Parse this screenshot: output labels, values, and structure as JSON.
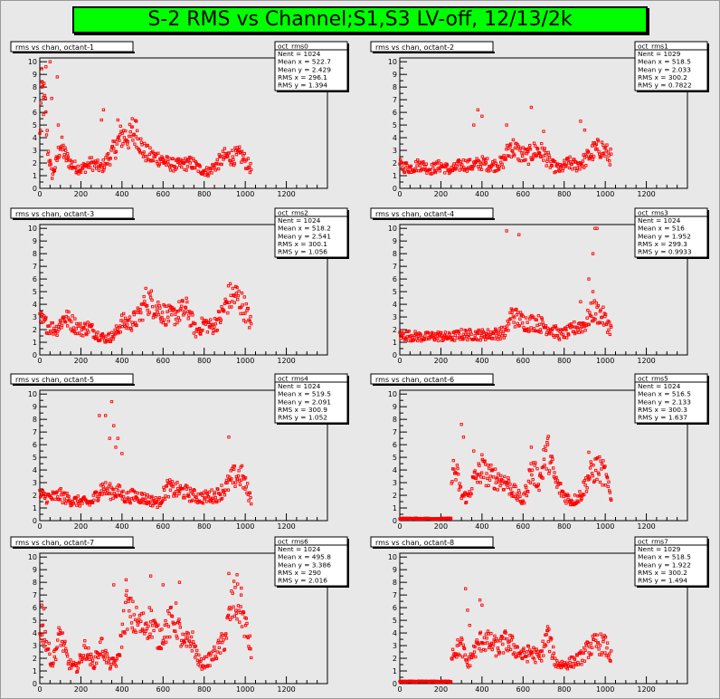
{
  "canvas_title": "S-2 RMS vs Channel;S1,S3 LV-off, 12/13/2k",
  "colors": {
    "marker": "#ff0000",
    "title_bg": "#00ff00",
    "frame_bg": "#e8e8e8"
  },
  "chart_data": [
    {
      "type": "scatter",
      "title": "rms vs chan, octant-1",
      "stats": {
        "name": "oct_rms0",
        "entries": "Nent = 1024",
        "mean_x": "Mean x = 522.7",
        "mean_y": "Mean y = 2.429",
        "rms_x": "RMS x = 296.1",
        "rms_y": "RMS y = 1.394"
      },
      "xlim": [
        0,
        1400
      ],
      "ylim": [
        0,
        10.3
      ],
      "xticks": [
        "0",
        "200",
        "400",
        "600",
        "800",
        "1000",
        "1200"
      ],
      "yticks": [
        "0",
        "1",
        "2",
        "3",
        "4",
        "5",
        "6",
        "7",
        "8",
        "9",
        "10"
      ],
      "x_range": [
        0,
        1030
      ],
      "profile": [
        [
          0,
          4.0
        ],
        [
          10,
          7.8
        ],
        [
          25,
          6.5
        ],
        [
          40,
          3.0
        ],
        [
          60,
          1.0
        ],
        [
          80,
          2.0
        ],
        [
          100,
          3.5
        ],
        [
          130,
          2.4
        ],
        [
          160,
          1.8
        ],
        [
          200,
          1.5
        ],
        [
          250,
          2.0
        ],
        [
          300,
          1.6
        ],
        [
          340,
          2.5
        ],
        [
          360,
          3.0
        ],
        [
          400,
          4.2
        ],
        [
          440,
          4.0
        ],
        [
          470,
          4.5
        ],
        [
          500,
          3.0
        ],
        [
          540,
          2.5
        ],
        [
          580,
          2.4
        ],
        [
          620,
          2.0
        ],
        [
          660,
          1.8
        ],
        [
          700,
          1.9
        ],
        [
          740,
          2.0
        ],
        [
          780,
          1.5
        ],
        [
          820,
          1.3
        ],
        [
          860,
          1.9
        ],
        [
          900,
          2.5
        ],
        [
          940,
          2.5
        ],
        [
          980,
          2.6
        ],
        [
          1030,
          1.5
        ]
      ],
      "spikes": [
        [
          8,
          8.4
        ],
        [
          12,
          8.0
        ],
        [
          18,
          7.2
        ],
        [
          30,
          9.6
        ],
        [
          50,
          10.0
        ],
        [
          58,
          7.1
        ],
        [
          85,
          8.8
        ],
        [
          90,
          5.0
        ],
        [
          310,
          6.2
        ],
        [
          300,
          5.4
        ],
        [
          380,
          5.4
        ],
        [
          450,
          5.5
        ],
        [
          470,
          5.3
        ]
      ]
    },
    {
      "type": "scatter",
      "title": "rms vs chan, octant-2",
      "stats": {
        "name": "oct_rms1",
        "entries": "Nent = 1029",
        "mean_x": "Mean x = 518.5",
        "mean_y": "Mean y = 2.033",
        "rms_x": "RMS x = 300.2",
        "rms_y": "RMS y = 0.7822"
      },
      "xlim": [
        0,
        1400
      ],
      "ylim": [
        0,
        10.3
      ],
      "xticks": [
        "0",
        "200",
        "400",
        "600",
        "800",
        "1000",
        "1200"
      ],
      "yticks": [
        "0",
        "1",
        "2",
        "3",
        "4",
        "5",
        "6",
        "7",
        "8",
        "9",
        "10"
      ],
      "x_range": [
        0,
        1030
      ],
      "profile": [
        [
          0,
          1.8
        ],
        [
          50,
          1.6
        ],
        [
          100,
          1.9
        ],
        [
          150,
          1.5
        ],
        [
          200,
          1.8
        ],
        [
          250,
          1.4
        ],
        [
          300,
          1.9
        ],
        [
          350,
          1.8
        ],
        [
          400,
          2.0
        ],
        [
          450,
          1.8
        ],
        [
          500,
          2.0
        ],
        [
          540,
          3.4
        ],
        [
          580,
          2.8
        ],
        [
          620,
          2.5
        ],
        [
          660,
          3.0
        ],
        [
          700,
          2.8
        ],
        [
          740,
          1.8
        ],
        [
          780,
          1.5
        ],
        [
          820,
          2.0
        ],
        [
          860,
          1.8
        ],
        [
          900,
          2.2
        ],
        [
          940,
          2.9
        ],
        [
          980,
          3.2
        ],
        [
          1030,
          2.4
        ]
      ],
      "spikes": [
        [
          360,
          5.0
        ],
        [
          380,
          6.2
        ],
        [
          400,
          5.7
        ],
        [
          520,
          5.0
        ],
        [
          640,
          6.4
        ],
        [
          700,
          4.5
        ],
        [
          880,
          5.3
        ],
        [
          900,
          4.6
        ]
      ]
    },
    {
      "type": "scatter",
      "title": "rms vs chan, octant-3",
      "stats": {
        "name": "oct_rms2",
        "entries": "Nent = 1024",
        "mean_x": "Mean x = 518.2",
        "mean_y": "Mean y = 2.541",
        "rms_x": "RMS x = 300.1",
        "rms_y": "RMS y = 1.056"
      },
      "xlim": [
        0,
        1400
      ],
      "ylim": [
        0,
        10.3
      ],
      "xticks": [
        "0",
        "200",
        "400",
        "600",
        "800",
        "1000",
        "1200"
      ],
      "yticks": [
        "0",
        "1",
        "2",
        "3",
        "4",
        "5",
        "6",
        "7",
        "8",
        "9",
        "10"
      ],
      "x_range": [
        0,
        1030
      ],
      "profile": [
        [
          0,
          2.8
        ],
        [
          40,
          2.3
        ],
        [
          80,
          2.0
        ],
        [
          120,
          3.0
        ],
        [
          160,
          2.5
        ],
        [
          200,
          2.0
        ],
        [
          240,
          2.2
        ],
        [
          280,
          1.6
        ],
        [
          320,
          1.3
        ],
        [
          360,
          1.5
        ],
        [
          400,
          2.6
        ],
        [
          440,
          2.5
        ],
        [
          480,
          3.0
        ],
        [
          520,
          4.4
        ],
        [
          560,
          3.9
        ],
        [
          600,
          3.3
        ],
        [
          640,
          3.0
        ],
        [
          680,
          3.4
        ],
        [
          720,
          3.6
        ],
        [
          760,
          1.8
        ],
        [
          800,
          2.5
        ],
        [
          840,
          2.2
        ],
        [
          880,
          3.0
        ],
        [
          920,
          4.5
        ],
        [
          960,
          4.6
        ],
        [
          1000,
          3.6
        ],
        [
          1030,
          2.3
        ]
      ],
      "spikes": []
    },
    {
      "type": "scatter",
      "title": "rms vs chan, octant-4",
      "stats": {
        "name": "oct_rms3",
        "entries": "Nent = 1024",
        "mean_x": "Mean x = 516",
        "mean_y": "Mean y = 1.952",
        "rms_x": "RMS x = 299.3",
        "rms_y": "RMS y = 0.9933"
      },
      "xlim": [
        0,
        1400
      ],
      "ylim": [
        0,
        10.3
      ],
      "xticks": [
        "0",
        "200",
        "400",
        "600",
        "800",
        "1000",
        "1200"
      ],
      "yticks": [
        "0",
        "1",
        "2",
        "3",
        "4",
        "5",
        "6",
        "7",
        "8",
        "9",
        "10"
      ],
      "x_range": [
        0,
        1030
      ],
      "profile": [
        [
          0,
          1.6
        ],
        [
          60,
          1.5
        ],
        [
          120,
          1.4
        ],
        [
          180,
          1.5
        ],
        [
          240,
          1.4
        ],
        [
          300,
          1.6
        ],
        [
          360,
          1.6
        ],
        [
          420,
          1.6
        ],
        [
          480,
          1.7
        ],
        [
          520,
          1.8
        ],
        [
          540,
          3.2
        ],
        [
          580,
          2.8
        ],
        [
          620,
          2.5
        ],
        [
          660,
          2.6
        ],
        [
          700,
          2.3
        ],
        [
          740,
          2.0
        ],
        [
          780,
          1.6
        ],
        [
          820,
          1.8
        ],
        [
          860,
          2.2
        ],
        [
          900,
          2.4
        ],
        [
          940,
          3.5
        ],
        [
          980,
          3.2
        ],
        [
          1030,
          2.0
        ]
      ],
      "spikes": [
        [
          520,
          9.8
        ],
        [
          580,
          9.5
        ],
        [
          880,
          4.2
        ],
        [
          920,
          6.0
        ],
        [
          940,
          8.0
        ],
        [
          950,
          10.0
        ],
        [
          960,
          10.0
        ],
        [
          940,
          5.0
        ]
      ]
    },
    {
      "type": "scatter",
      "title": "rms vs chan, octant-5",
      "stats": {
        "name": "oct_rms4",
        "entries": "Nent = 1024",
        "mean_x": "Mean x = 519.5",
        "mean_y": "Mean y = 2.091",
        "rms_x": "RMS x = 300.9",
        "rms_y": "RMS y = 1.052"
      },
      "xlim": [
        0,
        1400
      ],
      "ylim": [
        0,
        10.3
      ],
      "xticks": [
        "0",
        "200",
        "400",
        "600",
        "800",
        "1000",
        "1200"
      ],
      "yticks": [
        "0",
        "1",
        "2",
        "3",
        "4",
        "5",
        "6",
        "7",
        "8",
        "9",
        "10"
      ],
      "x_range": [
        0,
        1030
      ],
      "profile": [
        [
          0,
          2.0
        ],
        [
          50,
          1.8
        ],
        [
          100,
          2.0
        ],
        [
          150,
          1.6
        ],
        [
          200,
          1.5
        ],
        [
          250,
          1.4
        ],
        [
          300,
          2.6
        ],
        [
          340,
          2.3
        ],
        [
          380,
          2.3
        ],
        [
          420,
          1.8
        ],
        [
          460,
          2.0
        ],
        [
          500,
          1.8
        ],
        [
          540,
          1.6
        ],
        [
          580,
          1.4
        ],
        [
          620,
          2.6
        ],
        [
          660,
          2.4
        ],
        [
          700,
          2.3
        ],
        [
          740,
          2.0
        ],
        [
          780,
          1.8
        ],
        [
          820,
          1.9
        ],
        [
          860,
          2.0
        ],
        [
          900,
          2.5
        ],
        [
          940,
          3.4
        ],
        [
          980,
          3.6
        ],
        [
          1030,
          1.6
        ]
      ],
      "spikes": [
        [
          290,
          8.3
        ],
        [
          320,
          8.3
        ],
        [
          340,
          6.5
        ],
        [
          350,
          9.4
        ],
        [
          360,
          7.5
        ],
        [
          370,
          5.8
        ],
        [
          380,
          6.5
        ],
        [
          400,
          5.3
        ],
        [
          920,
          6.6
        ]
      ]
    },
    {
      "type": "scatter",
      "title": "rms vs chan, octant-6",
      "stats": {
        "name": "oct_rms5",
        "entries": "Nent = 1024",
        "mean_x": "Mean x = 516.5",
        "mean_y": "Mean y = 2.133",
        "rms_x": "RMS x = 300.3",
        "rms_y": "RMS y = 1.637"
      },
      "xlim": [
        0,
        1400
      ],
      "ylim": [
        0,
        10.3
      ],
      "xticks": [
        "0",
        "200",
        "400",
        "600",
        "800",
        "1000",
        "1200"
      ],
      "yticks": [
        "0",
        "1",
        "2",
        "3",
        "4",
        "5",
        "6",
        "7",
        "8",
        "9",
        "10"
      ],
      "x_range": [
        0,
        1030
      ],
      "zero_range": [
        0,
        250
      ],
      "profile": [
        [
          260,
          4.0
        ],
        [
          280,
          3.5
        ],
        [
          300,
          2.0
        ],
        [
          330,
          1.8
        ],
        [
          360,
          3.2
        ],
        [
          400,
          4.0
        ],
        [
          440,
          3.5
        ],
        [
          480,
          3.3
        ],
        [
          520,
          3.0
        ],
        [
          560,
          2.2
        ],
        [
          600,
          1.5
        ],
        [
          640,
          4.0
        ],
        [
          680,
          3.2
        ],
        [
          720,
          5.5
        ],
        [
          760,
          3.0
        ],
        [
          800,
          2.0
        ],
        [
          840,
          1.5
        ],
        [
          880,
          2.0
        ],
        [
          920,
          3.5
        ],
        [
          960,
          4.2
        ],
        [
          1000,
          3.6
        ],
        [
          1030,
          1.5
        ]
      ],
      "spikes": [
        [
          300,
          7.6
        ],
        [
          310,
          6.6
        ],
        [
          360,
          5.5
        ],
        [
          400,
          5.2
        ],
        [
          640,
          5.8
        ],
        [
          700,
          5.6
        ],
        [
          720,
          6.0
        ],
        [
          920,
          5.4
        ]
      ]
    },
    {
      "type": "scatter",
      "title": "rms vs chan, octant-7",
      "stats": {
        "name": "oct_rms6",
        "entries": "Nent = 1024",
        "mean_x": "Mean x = 495.8",
        "mean_y": "Mean y = 3.386",
        "rms_x": "RMS x = 290",
        "rms_y": "RMS y = 2.016"
      },
      "xlim": [
        0,
        1400
      ],
      "ylim": [
        0,
        10.3
      ],
      "xticks": [
        "0",
        "200",
        "400",
        "600",
        "800",
        "1000",
        "1200"
      ],
      "yticks": [
        "0",
        "1",
        "2",
        "3",
        "4",
        "5",
        "6",
        "7",
        "8",
        "9",
        "10"
      ],
      "x_range": [
        0,
        1030
      ],
      "profile": [
        [
          0,
          4.5
        ],
        [
          30,
          3.5
        ],
        [
          60,
          1.5
        ],
        [
          100,
          4.0
        ],
        [
          140,
          1.6
        ],
        [
          180,
          1.2
        ],
        [
          220,
          2.8
        ],
        [
          260,
          1.5
        ],
        [
          300,
          3.0
        ],
        [
          340,
          1.5
        ],
        [
          380,
          1.8
        ],
        [
          420,
          6.0
        ],
        [
          460,
          5.0
        ],
        [
          500,
          4.5
        ],
        [
          540,
          5.0
        ],
        [
          580,
          3.5
        ],
        [
          620,
          4.5
        ],
        [
          660,
          5.2
        ],
        [
          700,
          3.0
        ],
        [
          740,
          3.5
        ],
        [
          780,
          1.5
        ],
        [
          820,
          1.8
        ],
        [
          860,
          2.5
        ],
        [
          900,
          3.5
        ],
        [
          940,
          6.5
        ],
        [
          980,
          6.0
        ],
        [
          1030,
          2.5
        ]
      ],
      "spikes": [
        [
          10,
          6.2
        ],
        [
          20,
          5.9
        ],
        [
          360,
          7.8
        ],
        [
          540,
          8.5
        ],
        [
          600,
          7.8
        ],
        [
          680,
          8.0
        ],
        [
          920,
          8.7
        ],
        [
          960,
          8.6
        ],
        [
          980,
          7.0
        ],
        [
          420,
          8.2
        ]
      ]
    },
    {
      "type": "scatter",
      "title": "rms vs chan, octant-8",
      "stats": {
        "name": "oct_rms7",
        "entries": "Nent = 1029",
        "mean_x": "Mean x = 518.5",
        "mean_y": "Mean y = 1.922",
        "rms_x": "RMS x = 300.2",
        "rms_y": "RMS y = 1.494"
      },
      "xlim": [
        0,
        1400
      ],
      "ylim": [
        0,
        10.3
      ],
      "xticks": [
        "0",
        "200",
        "400",
        "600",
        "800",
        "1000",
        "1200"
      ],
      "yticks": [
        "0",
        "1",
        "2",
        "3",
        "4",
        "5",
        "6",
        "7",
        "8",
        "9",
        "10"
      ],
      "x_range": [
        0,
        1030
      ],
      "zero_range": [
        0,
        250
      ],
      "profile": [
        [
          260,
          2.5
        ],
        [
          300,
          3.0
        ],
        [
          330,
          1.5
        ],
        [
          360,
          2.5
        ],
        [
          400,
          3.5
        ],
        [
          440,
          3.2
        ],
        [
          480,
          2.8
        ],
        [
          520,
          3.4
        ],
        [
          560,
          2.8
        ],
        [
          600,
          2.2
        ],
        [
          640,
          2.5
        ],
        [
          680,
          2.0
        ],
        [
          720,
          3.8
        ],
        [
          760,
          1.6
        ],
        [
          800,
          1.5
        ],
        [
          840,
          1.7
        ],
        [
          880,
          2.0
        ],
        [
          920,
          2.8
        ],
        [
          960,
          3.2
        ],
        [
          1000,
          3.0
        ],
        [
          1030,
          2.0
        ]
      ],
      "spikes": [
        [
          320,
          7.5
        ],
        [
          330,
          5.8
        ],
        [
          390,
          6.6
        ],
        [
          400,
          6.2
        ],
        [
          720,
          4.5
        ],
        [
          340,
          4.6
        ]
      ]
    }
  ]
}
